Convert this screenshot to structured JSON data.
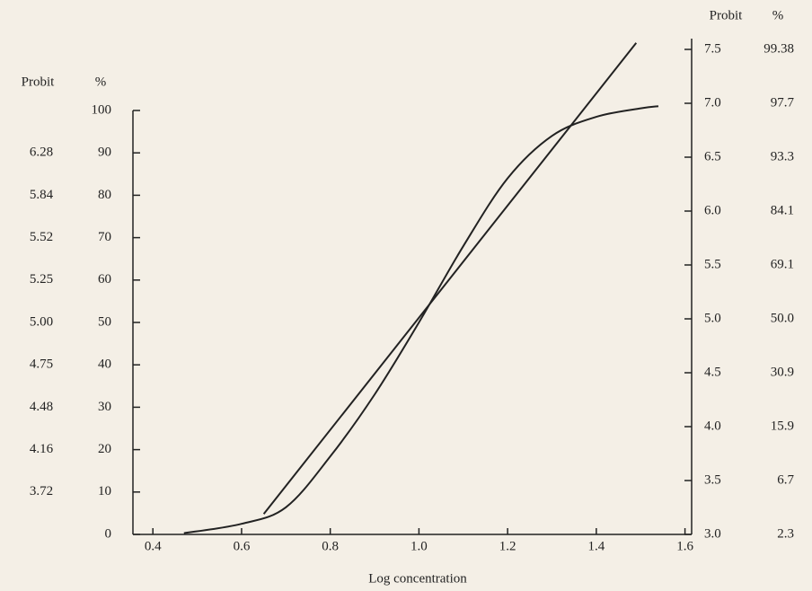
{
  "chart_data": {
    "type": "line",
    "x_label": "Log concentration",
    "left_headers": [
      "Probit",
      "%"
    ],
    "right_headers": [
      "Probit",
      "%"
    ],
    "xlim": [
      0.355,
      1.615
    ],
    "xticks": [
      0.4,
      0.6,
      0.8,
      {
        "value": 1.0,
        "label": "1.0"
      },
      1.2,
      1.4,
      1.6
    ],
    "ylim": [
      0,
      100
    ],
    "yticks": [
      0,
      10,
      20,
      30,
      40,
      50,
      60,
      70,
      80,
      90,
      100
    ],
    "left_probit_labels": [
      null,
      "3.72",
      "4.16",
      "4.48",
      "4.75",
      "5.00",
      "5.25",
      "5.52",
      "5.84",
      "6.28",
      null
    ],
    "y2lim": [
      3.0,
      7.5
    ],
    "y2ticks": [
      {
        "value": 3.0,
        "label": "3.0"
      },
      3.5,
      {
        "value": 4.0,
        "label": "4.0"
      },
      4.5,
      {
        "value": 5.0,
        "label": "5.0"
      },
      5.5,
      {
        "value": 6.0,
        "label": "6.0"
      },
      6.5,
      {
        "value": 7.0,
        "label": "7.0"
      },
      7.5
    ],
    "right_percent_labels": [
      "2.3",
      "6.7",
      "15.9",
      "30.9",
      "50.0",
      "69.1",
      "84.1",
      "93.3",
      "97.7",
      "99.38"
    ],
    "series": [
      {
        "color": "#222222",
        "x": [
          0.47,
          0.6,
          0.7,
          0.8,
          0.9,
          1.0,
          1.1,
          1.2,
          1.3,
          1.4,
          1.5,
          1.54
        ],
        "values": [
          0.3,
          2.5,
          6.4,
          18.4,
          33,
          50,
          68,
          84,
          94,
          98.5,
          100.5,
          101
        ]
      },
      {
        "color": "#222222",
        "axis": "y2",
        "x": [
          0.65,
          1.49
        ],
        "values": [
          3.19,
          7.56
        ]
      }
    ]
  }
}
